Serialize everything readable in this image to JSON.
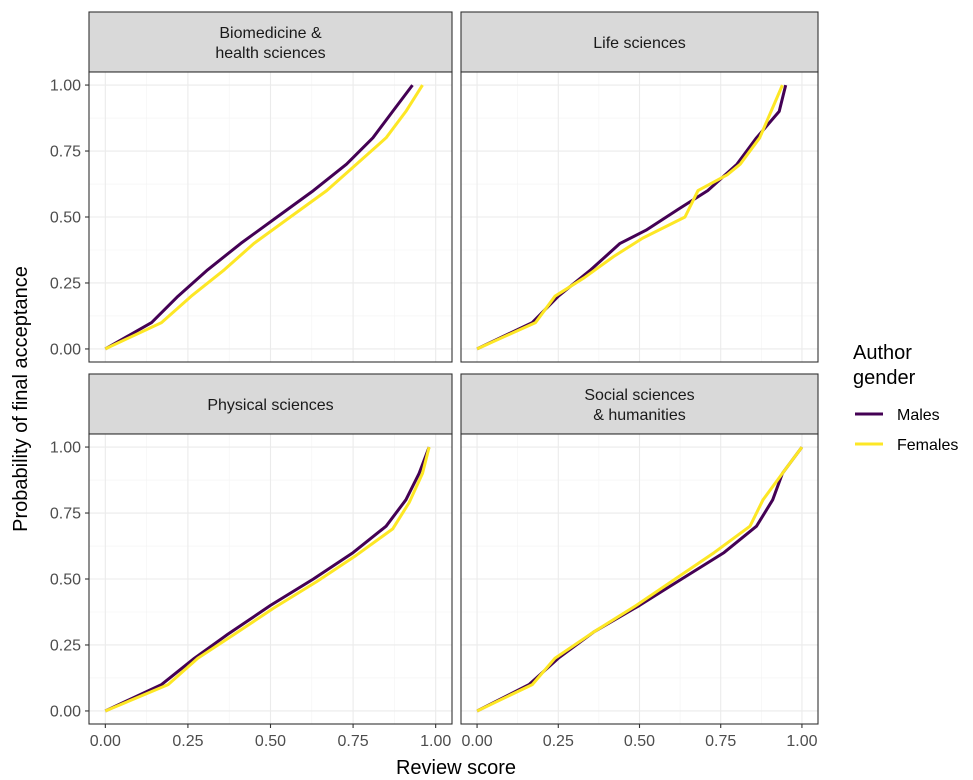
{
  "chart_data": {
    "type": "line",
    "xlabel": "Review score",
    "ylabel": "Probability of final acceptance",
    "xlim": [
      0,
      1
    ],
    "ylim": [
      0,
      1
    ],
    "x_ticks": [
      "0.00",
      "0.25",
      "0.50",
      "0.75",
      "1.00"
    ],
    "y_ticks": [
      "0.00",
      "0.25",
      "0.50",
      "0.75",
      "1.00"
    ],
    "grid": true,
    "legend": {
      "title_lines": [
        "Author",
        "gender"
      ],
      "placement": "right",
      "entries": [
        {
          "name": "Males",
          "color": "#440154"
        },
        {
          "name": "Females",
          "color": "#fde725"
        }
      ]
    },
    "panels": [
      {
        "strip": [
          "Biomedicine &",
          "health sciences"
        ],
        "series": [
          {
            "name": "Males",
            "color": "#440154",
            "x": [
              0,
              0.14,
              0.22,
              0.31,
              0.41,
              0.52,
              0.63,
              0.73,
              0.81,
              0.87,
              0.93
            ],
            "y": [
              0,
              0.1,
              0.2,
              0.3,
              0.4,
              0.5,
              0.6,
              0.7,
              0.8,
              0.9,
              1.0
            ]
          },
          {
            "name": "Females",
            "color": "#fde725",
            "x": [
              0,
              0.17,
              0.26,
              0.36,
              0.45,
              0.56,
              0.67,
              0.76,
              0.85,
              0.91,
              0.96
            ],
            "y": [
              0,
              0.1,
              0.2,
              0.3,
              0.4,
              0.5,
              0.6,
              0.7,
              0.8,
              0.9,
              1.0
            ]
          }
        ]
      },
      {
        "strip": [
          "Life sciences"
        ],
        "series": [
          {
            "name": "Males",
            "color": "#440154",
            "x": [
              0,
              0.17,
              0.25,
              0.35,
              0.44,
              0.52,
              0.62,
              0.71,
              0.8,
              0.86,
              0.93,
              0.95
            ],
            "y": [
              0,
              0.1,
              0.2,
              0.3,
              0.4,
              0.45,
              0.53,
              0.6,
              0.7,
              0.8,
              0.9,
              1.0
            ]
          },
          {
            "name": "Females",
            "color": "#fde725",
            "x": [
              0,
              0.18,
              0.24,
              0.33,
              0.42,
              0.51,
              0.64,
              0.68,
              0.77,
              0.81,
              0.87,
              0.94
            ],
            "y": [
              0,
              0.1,
              0.2,
              0.27,
              0.35,
              0.42,
              0.5,
              0.6,
              0.66,
              0.7,
              0.8,
              1.0
            ]
          }
        ]
      },
      {
        "strip": [
          "Physical sciences"
        ],
        "series": [
          {
            "name": "Males",
            "color": "#440154",
            "x": [
              0,
              0.17,
              0.27,
              0.37,
              0.5,
              0.63,
              0.75,
              0.85,
              0.91,
              0.95,
              0.98
            ],
            "y": [
              0,
              0.1,
              0.2,
              0.29,
              0.4,
              0.5,
              0.6,
              0.7,
              0.8,
              0.9,
              1.0
            ]
          },
          {
            "name": "Females",
            "color": "#fde725",
            "x": [
              0,
              0.19,
              0.28,
              0.39,
              0.51,
              0.64,
              0.76,
              0.87,
              0.92,
              0.96,
              0.98
            ],
            "y": [
              0,
              0.1,
              0.2,
              0.29,
              0.39,
              0.49,
              0.59,
              0.69,
              0.79,
              0.9,
              1.0
            ]
          }
        ]
      },
      {
        "strip": [
          "Social sciences",
          "& humanities"
        ],
        "series": [
          {
            "name": "Males",
            "color": "#440154",
            "x": [
              0,
              0.16,
              0.25,
              0.36,
              0.5,
              0.63,
              0.76,
              0.86,
              0.91,
              0.94,
              1.0
            ],
            "y": [
              0,
              0.1,
              0.2,
              0.3,
              0.4,
              0.5,
              0.6,
              0.7,
              0.8,
              0.9,
              1.0
            ]
          },
          {
            "name": "Females",
            "color": "#fde725",
            "x": [
              0,
              0.17,
              0.24,
              0.36,
              0.49,
              0.61,
              0.73,
              0.84,
              0.88,
              0.94,
              1.0
            ],
            "y": [
              0,
              0.1,
              0.2,
              0.3,
              0.4,
              0.5,
              0.6,
              0.7,
              0.8,
              0.9,
              1.0
            ]
          }
        ]
      }
    ]
  }
}
